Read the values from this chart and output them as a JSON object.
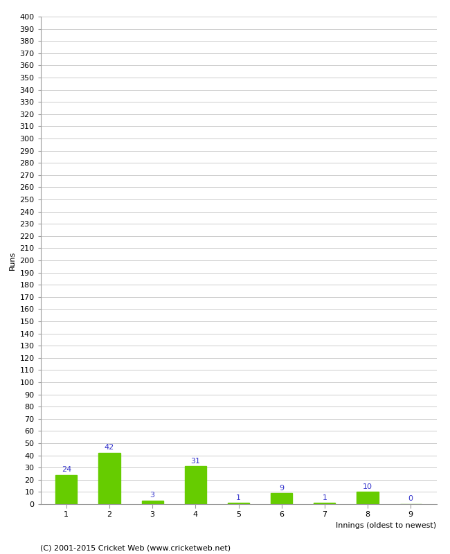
{
  "categories": [
    "1",
    "2",
    "3",
    "4",
    "5",
    "6",
    "7",
    "8",
    "9"
  ],
  "values": [
    24,
    42,
    3,
    31,
    1,
    9,
    1,
    10,
    0
  ],
  "bar_color": "#66CC00",
  "value_label_color": "#3333CC",
  "xlabel": "Innings (oldest to newest)",
  "ylabel": "Runs",
  "ylim": [
    0,
    400
  ],
  "ytick_step": 10,
  "footer": "(C) 2001-2015 Cricket Web (www.cricketweb.net)",
  "bg_color": "#FFFFFF",
  "grid_color": "#CCCCCC",
  "axis_fontsize": 8,
  "label_fontsize": 8,
  "footer_fontsize": 8,
  "bar_width": 0.5
}
